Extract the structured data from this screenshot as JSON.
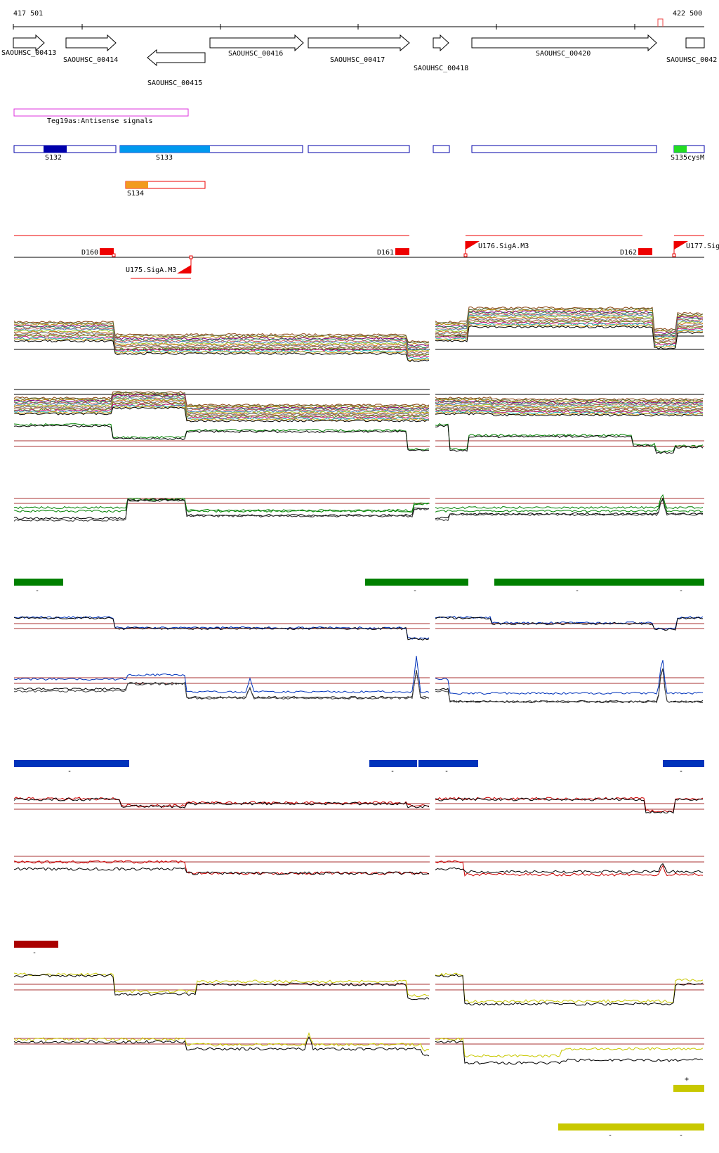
{
  "coords": {
    "start": "417 501",
    "end": "422 500"
  },
  "genes": [
    {
      "label": "SAOUHSC_00413",
      "strand": "+"
    },
    {
      "label": "SAOUHSC_00414",
      "strand": "+"
    },
    {
      "label": "SAOUHSC_00415",
      "strand": "-"
    },
    {
      "label": "SAOUHSC_00416",
      "strand": "+"
    },
    {
      "label": "SAOUHSC_00417",
      "strand": "+"
    },
    {
      "label": "SAOUHSC_00418",
      "strand": "+"
    },
    {
      "label": "SAOUHSC_00420",
      "strand": "+"
    },
    {
      "label": "SAOUHSC_0042",
      "strand": "+"
    }
  ],
  "antisense": {
    "label": "Teg19as:Antisense signals"
  },
  "segments": [
    {
      "label": "S132"
    },
    {
      "label": "S133"
    },
    {
      "label": "S134"
    },
    {
      "label": "S135"
    },
    {
      "label": "cysM"
    }
  ],
  "features": [
    {
      "label": "D160"
    },
    {
      "label": "D161"
    },
    {
      "label": "D162"
    },
    {
      "label": "U175.SigA.M3"
    },
    {
      "label": "U176.SigA.M3"
    },
    {
      "label": "U177.Sig"
    }
  ],
  "strand_marks": {
    "green": [
      "-",
      "-",
      "-",
      "-"
    ],
    "blue": [
      "-",
      "-",
      "-",
      "-"
    ],
    "red": [
      "-"
    ],
    "yellow": [
      "+",
      "-",
      "-"
    ]
  },
  "colors": {
    "green": "#008000",
    "blue": "#0033bb",
    "red": "#aa0000",
    "yellow": "#c8c800",
    "segment_blue": "#0000aa",
    "segment_lightblue": "#0099ee",
    "orange": "#f29a1e",
    "magenta": "#dd33dd",
    "feature_red": "#ee0000"
  }
}
